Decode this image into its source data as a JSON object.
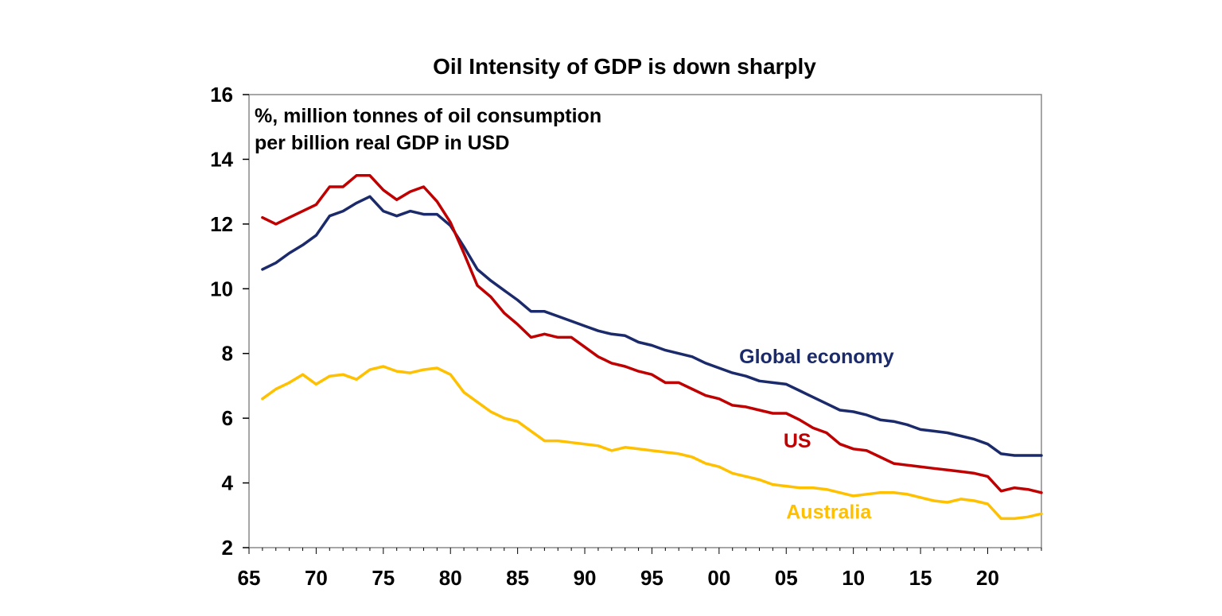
{
  "chart_data": {
    "type": "line",
    "title": "Oil Intensity of GDP is down sharply",
    "annotation": [
      "%, million tonnes of oil consumption",
      "per billion real GDP in USD"
    ],
    "xlabel": "",
    "ylabel": "",
    "x_range": [
      1965,
      2024
    ],
    "ylim": [
      2,
      16
    ],
    "y_ticks": [
      2,
      4,
      6,
      8,
      10,
      12,
      14,
      16
    ],
    "x_ticks": [
      {
        "year": 1965,
        "label": "65"
      },
      {
        "year": 1970,
        "label": "70"
      },
      {
        "year": 1975,
        "label": "75"
      },
      {
        "year": 1980,
        "label": "80"
      },
      {
        "year": 1985,
        "label": "85"
      },
      {
        "year": 1990,
        "label": "90"
      },
      {
        "year": 1995,
        "label": "95"
      },
      {
        "year": 2000,
        "label": "00"
      },
      {
        "year": 2005,
        "label": "05"
      },
      {
        "year": 2010,
        "label": "10"
      },
      {
        "year": 2015,
        "label": "15"
      },
      {
        "year": 2020,
        "label": "20"
      }
    ],
    "grid": false,
    "legend": "inline labels",
    "x": [
      1966,
      1967,
      1968,
      1969,
      1970,
      1971,
      1972,
      1973,
      1974,
      1975,
      1976,
      1977,
      1978,
      1979,
      1980,
      1981,
      1982,
      1983,
      1984,
      1985,
      1986,
      1987,
      1988,
      1989,
      1990,
      1991,
      1992,
      1993,
      1994,
      1995,
      1996,
      1997,
      1998,
      1999,
      2000,
      2001,
      2002,
      2003,
      2004,
      2005,
      2006,
      2007,
      2008,
      2009,
      2010,
      2011,
      2012,
      2013,
      2014,
      2015,
      2016,
      2017,
      2018,
      2019,
      2020,
      2021,
      2022,
      2023,
      2024
    ],
    "series": [
      {
        "name": "Global economy",
        "color": "#1b2a6b",
        "label_anchor": {
          "x": 2001.5,
          "y": 7.7
        },
        "values": [
          10.6,
          10.8,
          11.1,
          11.35,
          11.65,
          12.25,
          12.4,
          12.65,
          12.85,
          12.4,
          12.25,
          12.4,
          12.3,
          12.3,
          11.95,
          11.3,
          10.6,
          10.25,
          9.95,
          9.65,
          9.3,
          9.3,
          9.15,
          9.0,
          8.85,
          8.7,
          8.6,
          8.55,
          8.35,
          8.25,
          8.1,
          8.0,
          7.9,
          7.7,
          7.55,
          7.4,
          7.3,
          7.15,
          7.1,
          7.05,
          6.85,
          6.65,
          6.45,
          6.25,
          6.2,
          6.1,
          5.95,
          5.9,
          5.8,
          5.65,
          5.6,
          5.55,
          5.45,
          5.35,
          5.2,
          4.9,
          4.85,
          4.85,
          4.85
        ]
      },
      {
        "name": "US",
        "color": "#c00000",
        "label_anchor": {
          "x": 2004.8,
          "y": 5.1
        },
        "values": [
          12.2,
          12.0,
          12.2,
          12.4,
          12.6,
          13.15,
          13.15,
          13.5,
          13.5,
          13.05,
          12.75,
          13.0,
          13.15,
          12.7,
          12.05,
          11.1,
          10.1,
          9.75,
          9.25,
          8.9,
          8.5,
          8.6,
          8.5,
          8.5,
          8.2,
          7.9,
          7.7,
          7.6,
          7.45,
          7.35,
          7.1,
          7.1,
          6.9,
          6.7,
          6.6,
          6.4,
          6.35,
          6.25,
          6.15,
          6.15,
          5.95,
          5.7,
          5.55,
          5.2,
          5.05,
          5.0,
          4.8,
          4.6,
          4.55,
          4.5,
          4.45,
          4.4,
          4.35,
          4.3,
          4.2,
          3.75,
          3.85,
          3.8,
          3.7
        ]
      },
      {
        "name": "Australia",
        "color": "#ffc000",
        "label_anchor": {
          "x": 2005.0,
          "y": 2.9
        },
        "values": [
          6.6,
          6.9,
          7.1,
          7.35,
          7.05,
          7.3,
          7.35,
          7.2,
          7.5,
          7.6,
          7.45,
          7.4,
          7.5,
          7.55,
          7.35,
          6.8,
          6.5,
          6.2,
          6.0,
          5.9,
          5.6,
          5.3,
          5.3,
          5.25,
          5.2,
          5.15,
          5.0,
          5.1,
          5.05,
          5.0,
          4.95,
          4.9,
          4.8,
          4.6,
          4.5,
          4.3,
          4.2,
          4.1,
          3.95,
          3.9,
          3.85,
          3.85,
          3.8,
          3.7,
          3.6,
          3.65,
          3.7,
          3.7,
          3.65,
          3.55,
          3.45,
          3.4,
          3.5,
          3.45,
          3.35,
          2.9,
          2.9,
          2.95,
          3.05
        ]
      }
    ]
  }
}
